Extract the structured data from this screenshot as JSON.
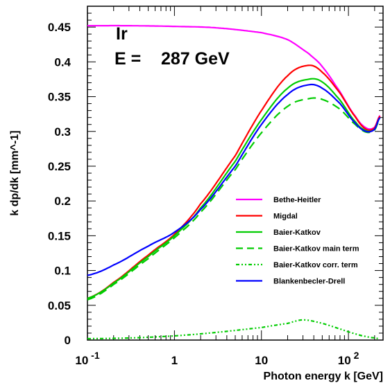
{
  "chart_data": {
    "type": "line",
    "title": "",
    "xlabel": "Photon energy k [GeV]",
    "ylabel": "k dp/dk [mm^-1]",
    "xscale": "log",
    "xlim": [
      0.1,
      250
    ],
    "ylim": [
      0,
      0.48
    ],
    "grid": false,
    "legend_position": "bottom-right",
    "x_tick_labels": [
      "10^-1",
      "1",
      "10",
      "10^2"
    ],
    "y_tick_labels": [
      "0",
      "0.05",
      "0.1",
      "0.15",
      "0.2",
      "0.25",
      "0.3",
      "0.35",
      "0.4",
      "0.45"
    ],
    "annotations": {
      "target": "Ir",
      "energy_prefix": "E =",
      "energy_value": "287 GeV"
    },
    "series": [
      {
        "name": "Bethe-Heitler",
        "color": "#ff00ff",
        "style": "solid",
        "x": [
          0.1,
          0.3,
          1,
          3,
          10,
          20,
          35,
          50,
          80,
          120,
          160,
          200,
          230
        ],
        "y": [
          0.452,
          0.452,
          0.451,
          0.449,
          0.442,
          0.432,
          0.412,
          0.393,
          0.357,
          0.322,
          0.305,
          0.306,
          0.323
        ]
      },
      {
        "name": "Migdal",
        "color": "#ff0000",
        "style": "solid",
        "x": [
          0.1,
          0.2,
          0.5,
          1,
          2,
          5,
          10,
          20,
          35,
          50,
          80,
          120,
          160,
          200,
          230
        ],
        "y": [
          0.06,
          0.083,
          0.122,
          0.152,
          0.196,
          0.265,
          0.33,
          0.38,
          0.395,
          0.385,
          0.355,
          0.321,
          0.303,
          0.305,
          0.322
        ]
      },
      {
        "name": "Baier-Katkov",
        "color": "#00cc00",
        "style": "solid",
        "x": [
          0.1,
          0.2,
          0.5,
          1,
          2,
          5,
          10,
          20,
          35,
          50,
          80,
          120,
          160,
          200,
          230
        ],
        "y": [
          0.06,
          0.082,
          0.12,
          0.15,
          0.19,
          0.257,
          0.317,
          0.362,
          0.375,
          0.371,
          0.345,
          0.314,
          0.301,
          0.303,
          0.32
        ]
      },
      {
        "name": "Baier-Katkov main term",
        "color": "#00cc00",
        "style": "dashed",
        "x": [
          0.1,
          0.2,
          0.5,
          1,
          2,
          5,
          10,
          20,
          35,
          50,
          80,
          120,
          160,
          200,
          230
        ],
        "y": [
          0.058,
          0.08,
          0.117,
          0.147,
          0.184,
          0.245,
          0.298,
          0.336,
          0.347,
          0.346,
          0.332,
          0.31,
          0.299,
          0.302,
          0.318
        ]
      },
      {
        "name": "Baier-Katkov corr. term",
        "color": "#00cc00",
        "style": "dashdot",
        "x": [
          0.1,
          0.3,
          1,
          3,
          10,
          20,
          30,
          50,
          80,
          120,
          160,
          200,
          230
        ],
        "y": [
          0.002,
          0.003,
          0.006,
          0.011,
          0.018,
          0.024,
          0.029,
          0.024,
          0.016,
          0.009,
          0.005,
          0.003,
          0.002
        ]
      },
      {
        "name": "Blankenbecler-Drell",
        "color": "#0000ff",
        "style": "solid",
        "x": [
          0.1,
          0.2,
          0.5,
          1,
          2,
          5,
          10,
          20,
          35,
          50,
          80,
          120,
          160,
          200,
          230
        ],
        "y": [
          0.093,
          0.108,
          0.135,
          0.155,
          0.188,
          0.25,
          0.31,
          0.353,
          0.367,
          0.362,
          0.34,
          0.312,
          0.3,
          0.303,
          0.32
        ]
      }
    ]
  }
}
